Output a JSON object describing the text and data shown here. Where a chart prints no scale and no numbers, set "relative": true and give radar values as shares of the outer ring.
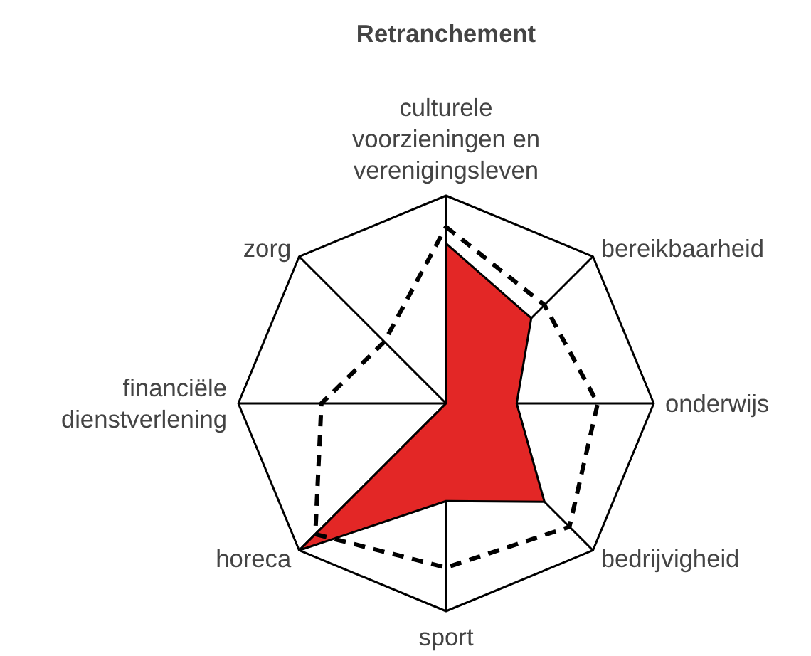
{
  "chart_data": {
    "type": "radar",
    "title": "Retranchement",
    "relative": true,
    "categories": [
      "culturele voorzieningen en verenigingsleven",
      "bereikbaarheid",
      "onderwijs",
      "bedrijvigheid",
      "sport",
      "horeca",
      "financiële dienstverlening",
      "zorg"
    ],
    "series": [
      {
        "color": "#e32726",
        "values": [
          0.77,
          0.58,
          0.34,
          0.67,
          0.47,
          1.0,
          0,
          0
        ]
      },
      {
        "color": "#000000",
        "line_style": "dashed",
        "values": [
          0.85,
          0.67,
          0.73,
          0.84,
          0.79,
          0.89,
          0.6,
          0.42
        ]
      }
    ]
  }
}
